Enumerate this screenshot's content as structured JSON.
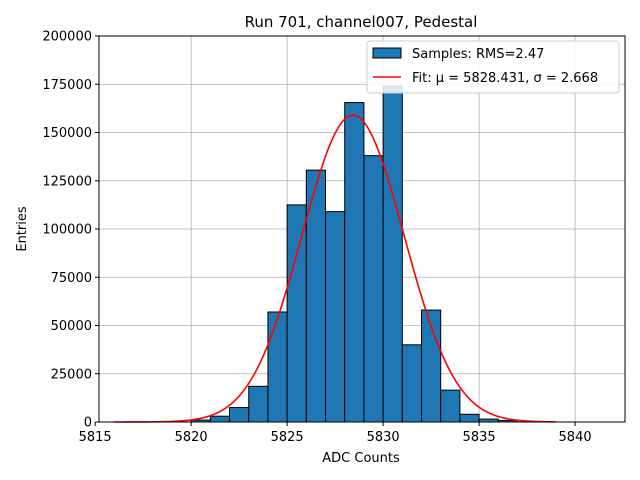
{
  "chart_data": {
    "type": "bar",
    "title": "Run 701, channel007, Pedestal",
    "xlabel": "ADC Counts",
    "ylabel": "Entries",
    "xlim": [
      5815.2,
      5842.6
    ],
    "ylim": [
      0,
      200000
    ],
    "grid": true,
    "legend_position": "top-right",
    "x_ticks": [
      5815,
      5820,
      5825,
      5830,
      5835,
      5840
    ],
    "y_ticks": [
      0,
      25000,
      50000,
      75000,
      100000,
      125000,
      150000,
      175000,
      200000
    ],
    "bar_color": "#1f77b4",
    "fit_color": "#ff0000",
    "histogram": {
      "name": "Samples: RMS=2.47",
      "bin_width": 1,
      "bin_starts": [
        5820,
        5821,
        5822,
        5823,
        5824,
        5825,
        5826,
        5827,
        5828,
        5829,
        5830,
        5831,
        5832,
        5833,
        5834,
        5835,
        5836
      ],
      "values": [
        1000,
        3000,
        7500,
        18500,
        57000,
        112500,
        130500,
        109000,
        165500,
        138000,
        174000,
        40000,
        58000,
        16500,
        4000,
        1500,
        800
      ]
    },
    "fit": {
      "name": "Fit: μ = 5828.431, σ = 2.668",
      "mu": 5828.431,
      "sigma": 2.668,
      "amplitude": 159000,
      "x_range": [
        5816,
        5839
      ]
    }
  }
}
